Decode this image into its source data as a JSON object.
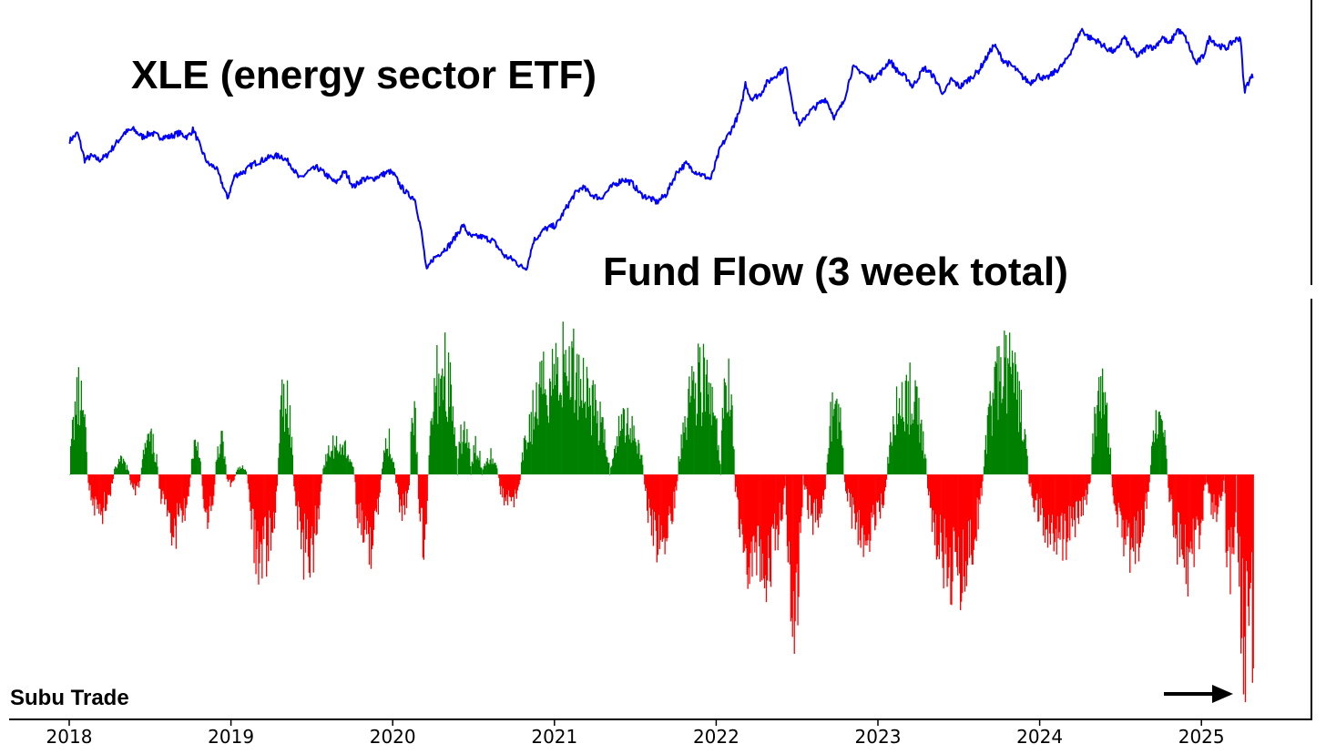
{
  "chart_data": [
    {
      "type": "line",
      "title": "XLE (energy sector ETF)",
      "color": "#0000ff",
      "points": [
        [
          "2018-01-02",
          88
        ],
        [
          "2018-01-20",
          90
        ],
        [
          "2018-02-05",
          83
        ],
        [
          "2018-02-20",
          84
        ],
        [
          "2018-03-10",
          83
        ],
        [
          "2018-03-25",
          84
        ],
        [
          "2018-04-15",
          87
        ],
        [
          "2018-05-05",
          90
        ],
        [
          "2018-05-25",
          91
        ],
        [
          "2018-06-15",
          89
        ],
        [
          "2018-07-05",
          90
        ],
        [
          "2018-07-25",
          89
        ],
        [
          "2018-08-15",
          89
        ],
        [
          "2018-09-05",
          90
        ],
        [
          "2018-09-25",
          89
        ],
        [
          "2018-10-08",
          91
        ],
        [
          "2018-10-25",
          86
        ],
        [
          "2018-11-10",
          82
        ],
        [
          "2018-11-28",
          81
        ],
        [
          "2018-12-15",
          76
        ],
        [
          "2018-12-24",
          73
        ],
        [
          "2019-01-10",
          79
        ],
        [
          "2019-02-01",
          80
        ],
        [
          "2019-02-20",
          82
        ],
        [
          "2019-03-15",
          83
        ],
        [
          "2019-04-05",
          84
        ],
        [
          "2019-04-25",
          84
        ],
        [
          "2019-05-15",
          82
        ],
        [
          "2019-06-05",
          78
        ],
        [
          "2019-06-25",
          80
        ],
        [
          "2019-07-15",
          81
        ],
        [
          "2019-08-05",
          79
        ],
        [
          "2019-08-25",
          77
        ],
        [
          "2019-09-15",
          80
        ],
        [
          "2019-10-05",
          76
        ],
        [
          "2019-10-25",
          78
        ],
        [
          "2019-11-15",
          78
        ],
        [
          "2019-12-05",
          79
        ],
        [
          "2019-12-25",
          80
        ],
        [
          "2020-01-05",
          79
        ],
        [
          "2020-01-20",
          76
        ],
        [
          "2020-02-05",
          74
        ],
        [
          "2020-02-20",
          73
        ],
        [
          "2020-03-05",
          65
        ],
        [
          "2020-03-18",
          54
        ],
        [
          "2020-03-30",
          57
        ],
        [
          "2020-04-20",
          59
        ],
        [
          "2020-05-10",
          61
        ],
        [
          "2020-06-08",
          66
        ],
        [
          "2020-06-25",
          63
        ],
        [
          "2020-07-20",
          63
        ],
        [
          "2020-08-15",
          62
        ],
        [
          "2020-09-10",
          58
        ],
        [
          "2020-09-30",
          57
        ],
        [
          "2020-10-20",
          55
        ],
        [
          "2020-10-30",
          55
        ],
        [
          "2020-11-15",
          62
        ],
        [
          "2020-12-10",
          65
        ],
        [
          "2021-01-05",
          66
        ],
        [
          "2021-01-25",
          70
        ],
        [
          "2021-02-15",
          74
        ],
        [
          "2021-03-05",
          76
        ],
        [
          "2021-03-25",
          74
        ],
        [
          "2021-04-15",
          73
        ],
        [
          "2021-05-10",
          76
        ],
        [
          "2021-06-05",
          78
        ],
        [
          "2021-06-25",
          77
        ],
        [
          "2021-07-15",
          74
        ],
        [
          "2021-08-05",
          73
        ],
        [
          "2021-08-20",
          72
        ],
        [
          "2021-09-10",
          74
        ],
        [
          "2021-10-05",
          80
        ],
        [
          "2021-10-25",
          82
        ],
        [
          "2021-11-15",
          80
        ],
        [
          "2021-12-01",
          79
        ],
        [
          "2021-12-20",
          78
        ],
        [
          "2022-01-10",
          86
        ],
        [
          "2022-02-05",
          91
        ],
        [
          "2022-02-25",
          96
        ],
        [
          "2022-03-08",
          103
        ],
        [
          "2022-03-20",
          99
        ],
        [
          "2022-04-10",
          100
        ],
        [
          "2022-04-25",
          103
        ],
        [
          "2022-05-15",
          105
        ],
        [
          "2022-06-08",
          107
        ],
        [
          "2022-06-25",
          96
        ],
        [
          "2022-07-10",
          92
        ],
        [
          "2022-07-25",
          95
        ],
        [
          "2022-08-15",
          97
        ],
        [
          "2022-09-05",
          99
        ],
        [
          "2022-09-25",
          94
        ],
        [
          "2022-10-15",
          98
        ],
        [
          "2022-11-05",
          107
        ],
        [
          "2022-11-25",
          106
        ],
        [
          "2022-12-15",
          104
        ],
        [
          "2023-01-10",
          106
        ],
        [
          "2023-01-27",
          109
        ],
        [
          "2023-02-15",
          106
        ],
        [
          "2023-03-10",
          104
        ],
        [
          "2023-03-20",
          102
        ],
        [
          "2023-04-15",
          107
        ],
        [
          "2023-05-05",
          105
        ],
        [
          "2023-05-30",
          100
        ],
        [
          "2023-06-15",
          104
        ],
        [
          "2023-07-05",
          102
        ],
        [
          "2023-07-25",
          104
        ],
        [
          "2023-08-15",
          106
        ],
        [
          "2023-09-05",
          110
        ],
        [
          "2023-09-20",
          113
        ],
        [
          "2023-10-10",
          109
        ],
        [
          "2023-11-05",
          107
        ],
        [
          "2023-11-20",
          105
        ],
        [
          "2023-12-10",
          103
        ],
        [
          "2023-12-28",
          105
        ],
        [
          "2024-01-15",
          104
        ],
        [
          "2024-02-05",
          106
        ],
        [
          "2024-02-25",
          108
        ],
        [
          "2024-03-15",
          112
        ],
        [
          "2024-04-05",
          117
        ],
        [
          "2024-04-20",
          115
        ],
        [
          "2024-05-10",
          114
        ],
        [
          "2024-06-01",
          112
        ],
        [
          "2024-06-20",
          111
        ],
        [
          "2024-07-10",
          115
        ],
        [
          "2024-07-25",
          112
        ],
        [
          "2024-08-10",
          110
        ],
        [
          "2024-09-05",
          113
        ],
        [
          "2024-09-15",
          112
        ],
        [
          "2024-10-05",
          115
        ],
        [
          "2024-10-20",
          113
        ],
        [
          "2024-11-08",
          117
        ],
        [
          "2024-11-25",
          115
        ],
        [
          "2024-12-20",
          108
        ],
        [
          "2025-01-05",
          110
        ],
        [
          "2025-01-20",
          115
        ],
        [
          "2025-02-05",
          113
        ],
        [
          "2025-02-25",
          112
        ],
        [
          "2025-03-15",
          114
        ],
        [
          "2025-03-31",
          115
        ],
        [
          "2025-04-04",
          106
        ],
        [
          "2025-04-08",
          101
        ],
        [
          "2025-04-20",
          104
        ],
        [
          "2025-04-28",
          105
        ]
      ]
    },
    {
      "type": "bar",
      "title": "Fund Flow (3 week total)",
      "positive_color": "#008000",
      "negative_color": "#ff0000",
      "segments": [
        {
          "start": "2018-01-01",
          "end": "2018-02-10",
          "peak": 0.68
        },
        {
          "start": "2018-02-10",
          "end": "2018-04-10",
          "peak": -0.32
        },
        {
          "start": "2018-04-10",
          "end": "2018-05-15",
          "peak": 0.12
        },
        {
          "start": "2018-05-15",
          "end": "2018-06-10",
          "peak": -0.16
        },
        {
          "start": "2018-06-10",
          "end": "2018-07-20",
          "peak": 0.3
        },
        {
          "start": "2018-07-20",
          "end": "2018-10-01",
          "peak": -0.5
        },
        {
          "start": "2018-10-01",
          "end": "2018-10-25",
          "peak": 0.3
        },
        {
          "start": "2018-10-25",
          "end": "2018-11-25",
          "peak": -0.36
        },
        {
          "start": "2018-11-25",
          "end": "2018-12-20",
          "peak": 0.3
        },
        {
          "start": "2018-12-20",
          "end": "2019-01-10",
          "peak": -0.08
        },
        {
          "start": "2019-01-10",
          "end": "2019-02-05",
          "peak": 0.06
        },
        {
          "start": "2019-02-05",
          "end": "2019-04-15",
          "peak": -0.77
        },
        {
          "start": "2019-04-15",
          "end": "2019-05-20",
          "peak": 0.74
        },
        {
          "start": "2019-05-20",
          "end": "2019-07-25",
          "peak": -0.72
        },
        {
          "start": "2019-07-25",
          "end": "2019-10-05",
          "peak": 0.28
        },
        {
          "start": "2019-10-05",
          "end": "2019-12-05",
          "peak": -0.64
        },
        {
          "start": "2019-12-05",
          "end": "2020-01-05",
          "peak": 0.3
        },
        {
          "start": "2020-01-05",
          "end": "2020-02-08",
          "peak": -0.3
        },
        {
          "start": "2020-02-08",
          "end": "2020-02-25",
          "peak": 0.55
        },
        {
          "start": "2020-02-25",
          "end": "2020-03-20",
          "peak": -0.55
        },
        {
          "start": "2020-03-20",
          "end": "2020-05-25",
          "peak": 0.96
        },
        {
          "start": "2020-05-25",
          "end": "2020-06-25",
          "peak": 0.4
        },
        {
          "start": "2020-06-25",
          "end": "2020-07-20",
          "peak": 0.25
        },
        {
          "start": "2020-07-20",
          "end": "2020-08-25",
          "peak": 0.18
        },
        {
          "start": "2020-08-25",
          "end": "2020-10-15",
          "peak": -0.26
        },
        {
          "start": "2020-10-15",
          "end": "2021-05-05",
          "peak": 0.99
        },
        {
          "start": "2021-05-05",
          "end": "2021-07-20",
          "peak": 0.49
        },
        {
          "start": "2021-07-20",
          "end": "2021-10-05",
          "peak": -0.59
        },
        {
          "start": "2021-10-05",
          "end": "2022-01-10",
          "peak": 0.87
        },
        {
          "start": "2022-01-10",
          "end": "2022-02-10",
          "peak": 0.92
        },
        {
          "start": "2022-02-10",
          "end": "2022-06-05",
          "peak": -0.91
        },
        {
          "start": "2022-06-05",
          "end": "2022-07-15",
          "peak": -1.14
        },
        {
          "start": "2022-07-15",
          "end": "2022-09-05",
          "peak": -0.41
        },
        {
          "start": "2022-09-05",
          "end": "2022-10-15",
          "peak": 0.65
        },
        {
          "start": "2022-10-15",
          "end": "2023-01-20",
          "peak": -0.56
        },
        {
          "start": "2023-01-20",
          "end": "2023-04-20",
          "peak": 0.72
        },
        {
          "start": "2023-04-20",
          "end": "2023-08-25",
          "peak": -0.9
        },
        {
          "start": "2023-08-25",
          "end": "2023-12-05",
          "peak": 0.95
        },
        {
          "start": "2023-12-05",
          "end": "2024-04-25",
          "peak": -0.56
        },
        {
          "start": "2024-04-25",
          "end": "2024-06-10",
          "peak": 0.68
        },
        {
          "start": "2024-06-10",
          "end": "2024-09-05",
          "peak": -0.65
        },
        {
          "start": "2024-09-05",
          "end": "2024-10-15",
          "peak": 0.5
        },
        {
          "start": "2024-10-15",
          "end": "2025-01-10",
          "peak": -0.78
        },
        {
          "start": "2025-01-10",
          "end": "2025-02-20",
          "peak": -0.35
        },
        {
          "start": "2025-02-20",
          "end": "2025-03-20",
          "peak": -0.9
        },
        {
          "start": "2025-03-20",
          "end": "2025-04-28",
          "peak": -1.44
        }
      ]
    }
  ],
  "x_axis": {
    "ticks": [
      "2018",
      "2019",
      "2020",
      "2021",
      "2022",
      "2023",
      "2024",
      "2025"
    ]
  },
  "watermark": "Subu Trade"
}
